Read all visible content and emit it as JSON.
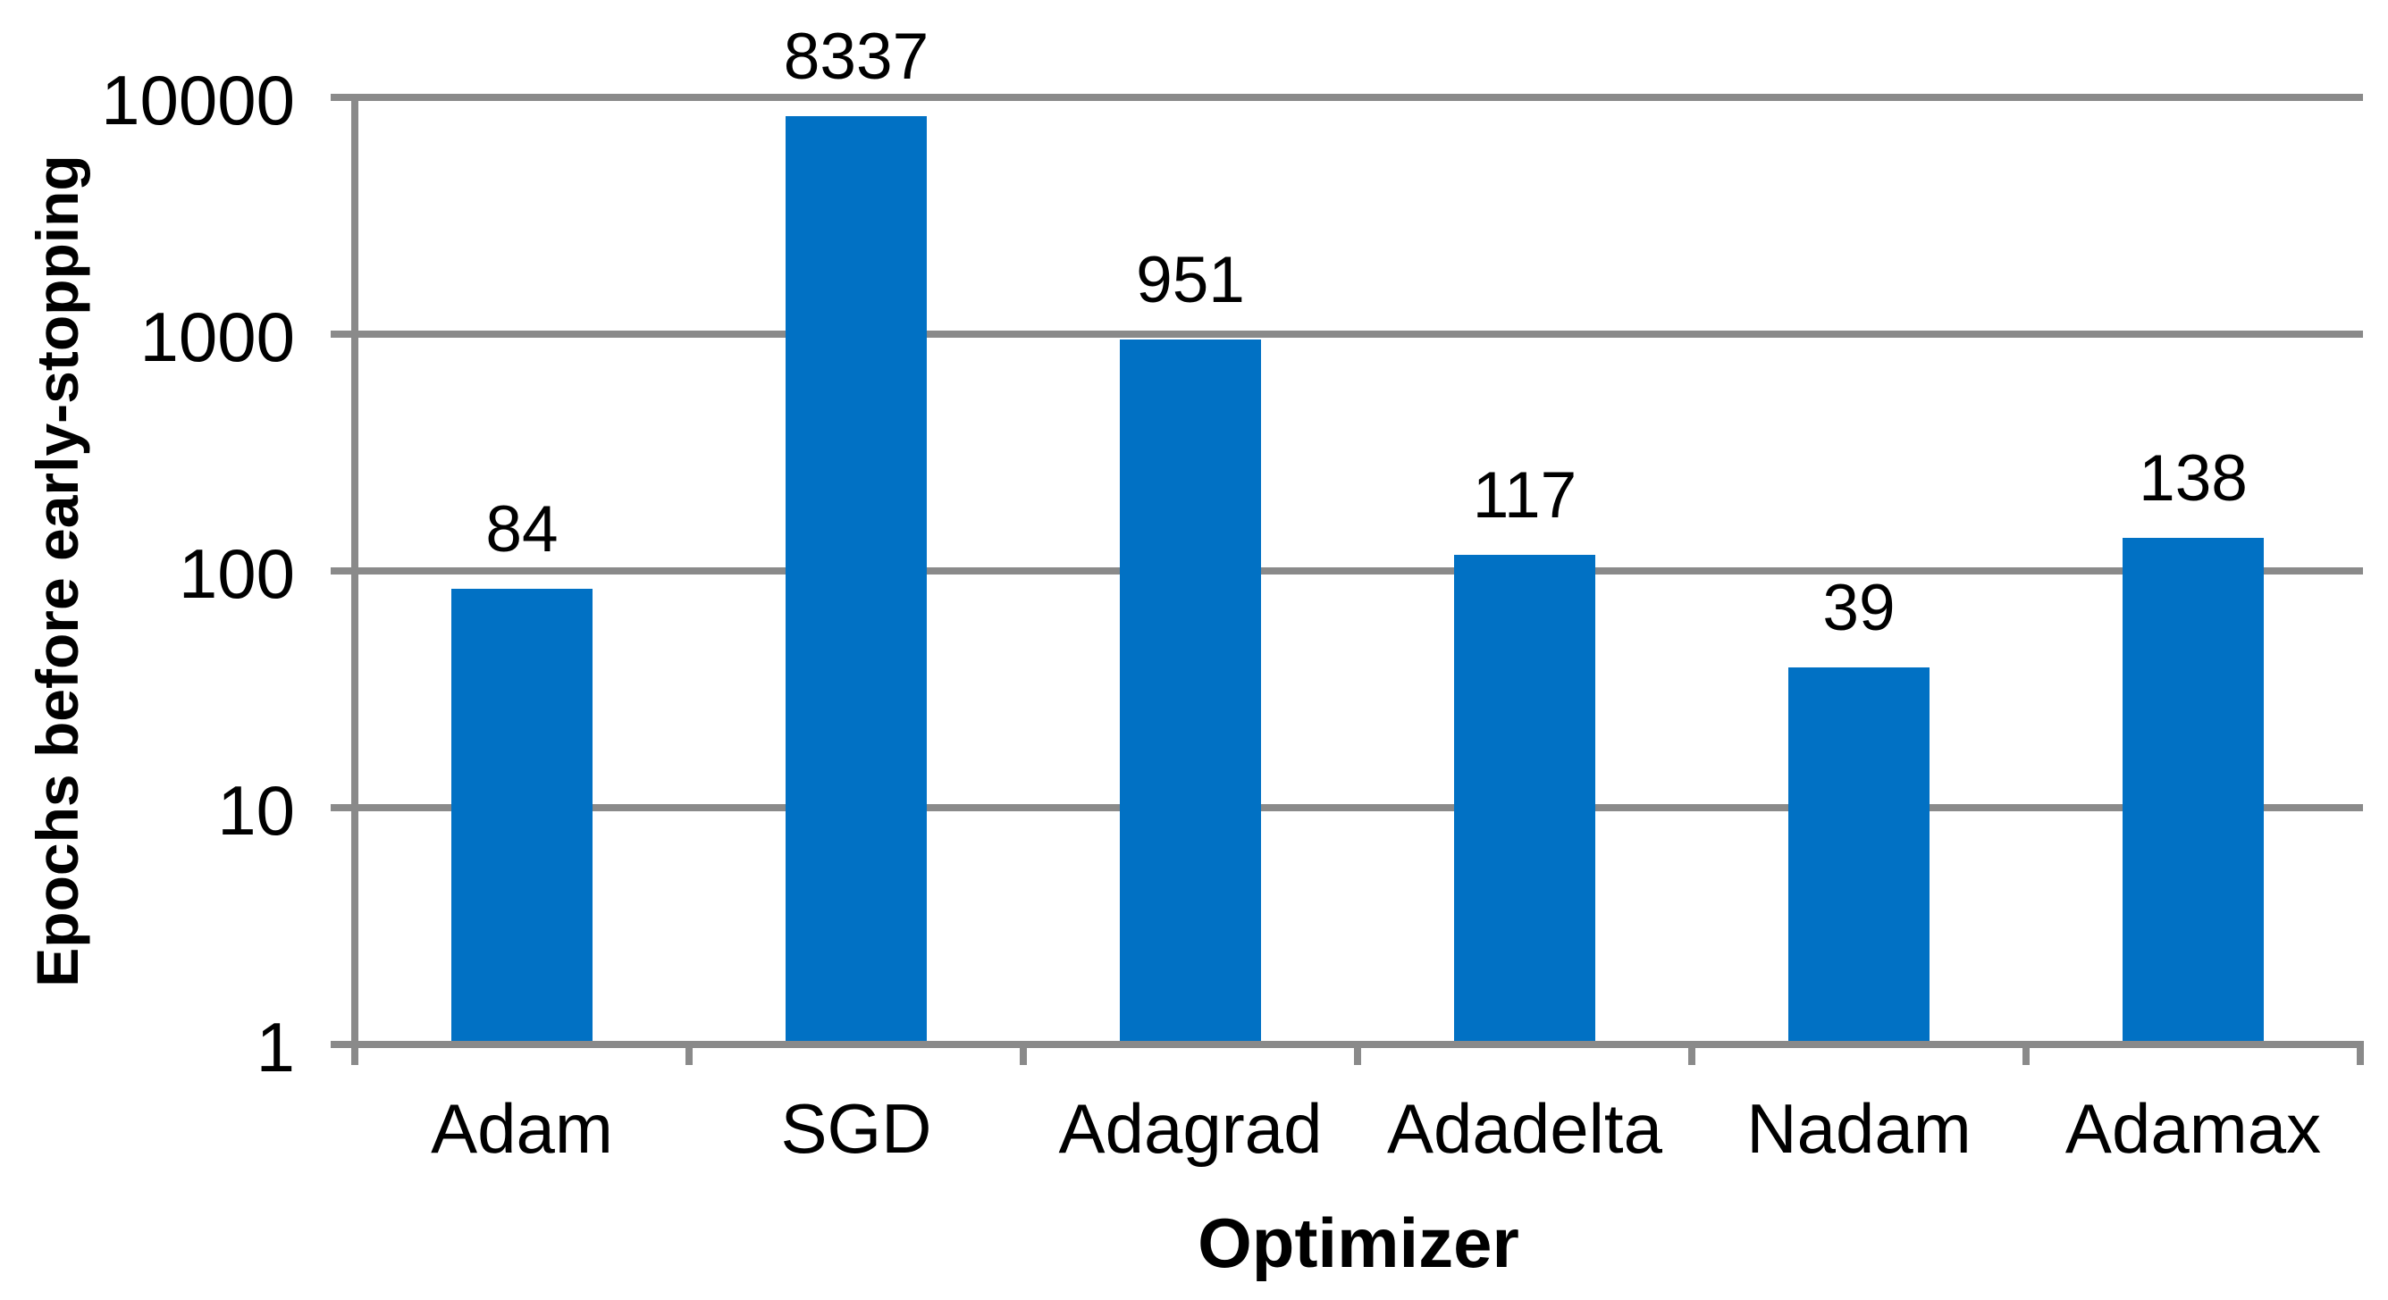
{
  "chart_data": {
    "type": "bar",
    "title": "",
    "xlabel": "Optimizer",
    "ylabel": "Epochs before early-stopping",
    "categories": [
      "Adam",
      "SGD",
      "Adagrad",
      "Adadelta",
      "Nadam",
      "Adamax"
    ],
    "values": [
      84,
      8337,
      951,
      117,
      39,
      138
    ],
    "data_labels": [
      "84",
      "8337",
      "951",
      "117",
      "39",
      "138"
    ],
    "y_scale": "log",
    "ylim": [
      1,
      10000
    ],
    "y_ticks": [
      {
        "value": 10000,
        "label": "10000"
      },
      {
        "value": 1000,
        "label": "1000"
      },
      {
        "value": 100,
        "label": "100"
      },
      {
        "value": 10,
        "label": "10"
      },
      {
        "value": 1,
        "label": "1"
      }
    ],
    "grid": true,
    "legend": false,
    "colors": {
      "bar": "#0171c4",
      "gridline": "#8a8a8a",
      "text": "#000000",
      "background": "#ffffff"
    }
  }
}
